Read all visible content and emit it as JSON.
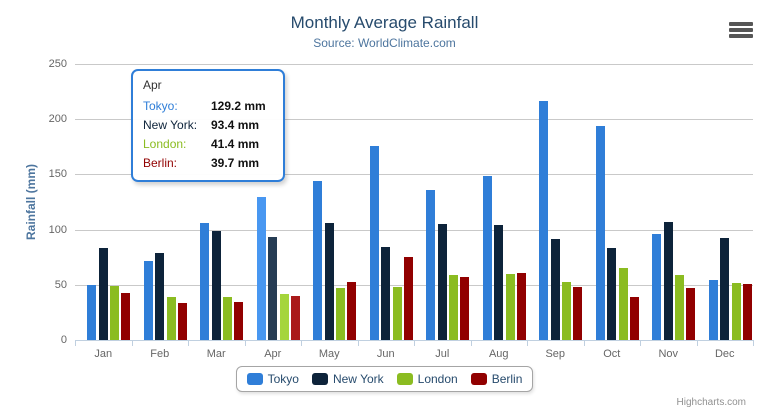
{
  "chart_data": {
    "type": "bar",
    "title": "Monthly Average Rainfall",
    "subtitle": "Source: WorldClimate.com",
    "xlabel": "",
    "ylabel": "Rainfall (mm)",
    "ylim": [
      0,
      250
    ],
    "ytick_interval": 50,
    "grid": true,
    "legend_position": "bottom",
    "categories": [
      "Jan",
      "Feb",
      "Mar",
      "Apr",
      "May",
      "Jun",
      "Jul",
      "Aug",
      "Sep",
      "Oct",
      "Nov",
      "Dec"
    ],
    "hovered_category": "Apr",
    "hovered_category_index": 3,
    "series": [
      {
        "name": "Tokyo",
        "color": "#2f7ed8",
        "hover_color": "#4897f1",
        "values": [
          49.9,
          71.5,
          106.4,
          129.2,
          144.0,
          176.0,
          135.6,
          148.5,
          216.4,
          194.1,
          95.6,
          54.4
        ]
      },
      {
        "name": "New York",
        "color": "#0d233a",
        "hover_color": "#263c54",
        "values": [
          83.6,
          78.8,
          98.5,
          93.4,
          106.0,
          84.5,
          105.0,
          104.3,
          91.2,
          83.5,
          106.6,
          92.3
        ]
      },
      {
        "name": "London",
        "color": "#8bbc21",
        "hover_color": "#a5d53b",
        "values": [
          48.9,
          38.8,
          39.3,
          41.4,
          47.0,
          48.3,
          59.0,
          59.6,
          52.4,
          65.2,
          59.3,
          51.2
        ]
      },
      {
        "name": "Berlin",
        "color": "#910000",
        "hover_color": "#aa1a1a",
        "values": [
          42.4,
          33.2,
          34.5,
          39.7,
          52.6,
          75.5,
          57.4,
          60.4,
          47.6,
          39.1,
          46.8,
          51.1
        ]
      }
    ]
  },
  "tooltip": {
    "header": "Apr",
    "border_color": "#2f7ed8",
    "rows": [
      {
        "name": "Tokyo:",
        "value": "129.2 mm",
        "color": "#2f7ed8"
      },
      {
        "name": "New York:",
        "value": "93.4 mm",
        "color": "#0d233a"
      },
      {
        "name": "London:",
        "value": "41.4 mm",
        "color": "#8bbc21"
      },
      {
        "name": "Berlin:",
        "value": "39.7 mm",
        "color": "#910000"
      }
    ]
  },
  "export_menu": {
    "icon": "hamburger-icon",
    "color": "#565656"
  },
  "credits": {
    "label": "Highcharts.com"
  },
  "axis_colors": {
    "axis_line": "#c0d0e0",
    "grid_line": "#c9c9c9",
    "tick_label": "#666666"
  }
}
